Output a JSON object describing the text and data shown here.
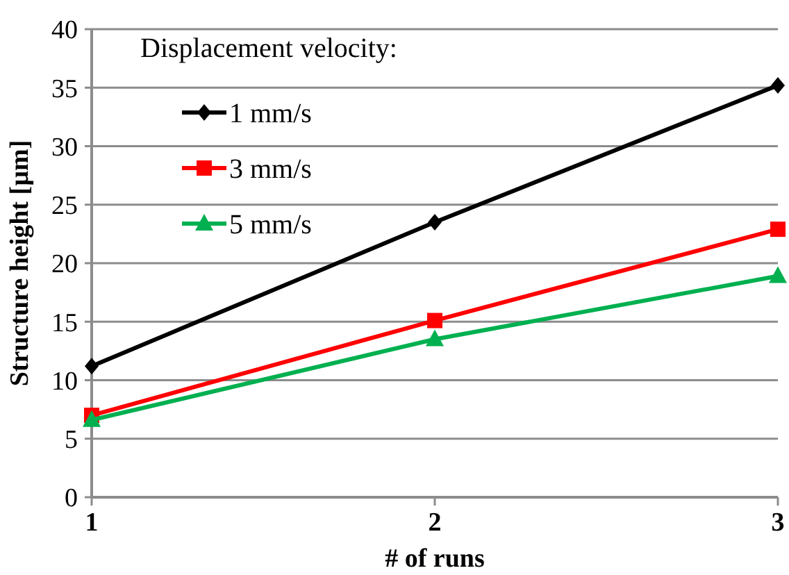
{
  "chart_data": {
    "type": "line",
    "xlabel": "# of runs",
    "ylabel": "Structure height [µm]",
    "legend_title": "Displacement velocity:",
    "x": [
      1,
      2,
      3
    ],
    "xlim": [
      1,
      3
    ],
    "xticks": [
      1,
      2,
      3
    ],
    "ylim": [
      0,
      40
    ],
    "yticks": [
      0,
      5,
      10,
      15,
      20,
      25,
      30,
      35,
      40
    ],
    "grid": "y",
    "legend": "top left",
    "line_style": "solid",
    "series": [
      {
        "name": "1 mm/s",
        "color": "#000000",
        "marker": "diamond",
        "values": [
          11.2,
          23.5,
          35.2
        ]
      },
      {
        "name": "3 mm/s",
        "color": "#ff0000",
        "marker": "square",
        "values": [
          7.0,
          15.1,
          22.9
        ]
      },
      {
        "name": "5 mm/s",
        "color": "#00b050",
        "marker": "triangle",
        "values": [
          6.6,
          13.5,
          18.9
        ]
      }
    ]
  }
}
